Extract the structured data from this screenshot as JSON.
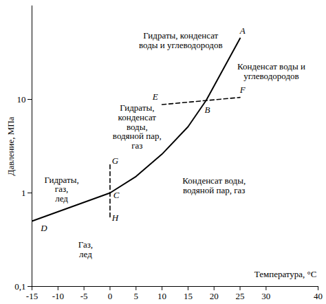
{
  "chart_data": {
    "type": "line",
    "x_label": "Температура, °C",
    "y_label": "Давление, МПа",
    "log": "y",
    "grid": false,
    "color": "#000000",
    "xlim": [
      -15,
      40
    ],
    "xticks": [
      -15,
      -10,
      -5,
      0,
      5,
      10,
      15,
      20,
      25,
      30,
      40
    ],
    "ylim": [
      0.1,
      100
    ],
    "yticks": [
      {
        "value": 0.1,
        "label": "0,1"
      },
      1,
      10
    ],
    "curve": {
      "x": [
        -15,
        0,
        5,
        10,
        15,
        18.5,
        25
      ],
      "y": [
        0.5,
        1,
        1.5,
        2.6,
        5.1,
        9.8,
        45
      ]
    },
    "dashed_lines": [
      {
        "x": [
          10,
          25
        ],
        "y": [
          8.8,
          10.5
        ],
        "line_style": "dashed"
      },
      {
        "x": [
          0,
          0
        ],
        "y": [
          2,
          0.52
        ],
        "line_style": "dashed"
      }
    ],
    "point_labels": [
      {
        "text": "A",
        "x": 25.5,
        "y": 54
      },
      {
        "text": "B",
        "x": 18.7,
        "y": 7.7
      },
      {
        "text": "C",
        "x": 1.2,
        "y": 0.94
      },
      {
        "text": "D",
        "x": -12.7,
        "y": 0.42
      },
      {
        "text": "E",
        "x": 8.7,
        "y": 10.7
      },
      {
        "text": "F",
        "x": 25.5,
        "y": 12.6
      },
      {
        "text": "G",
        "x": 1.0,
        "y": 2.2
      },
      {
        "text": "H",
        "x": 1.0,
        "y": 0.54
      }
    ],
    "regions": [
      {
        "text": "Гидраты, конденсат\nводы и углеводородов",
        "x": 13.6,
        "y": 43
      },
      {
        "text": "Конденсат воды и\nуглеводородов",
        "x": 31,
        "y": 20
      },
      {
        "text": "Гидраты,\nконденсат\nводы,\nводяной пар,\nгаз",
        "x": 5.2,
        "y": 5.1
      },
      {
        "text": "Гидраты,\nгаз,\nлед",
        "x": -9.3,
        "y": 1.1
      },
      {
        "text": "Конденсат воды,\nводяной пар, газ",
        "x": 20,
        "y": 1.2
      },
      {
        "text": "Газ,\nлед",
        "x": -4.7,
        "y": 0.25
      }
    ]
  }
}
